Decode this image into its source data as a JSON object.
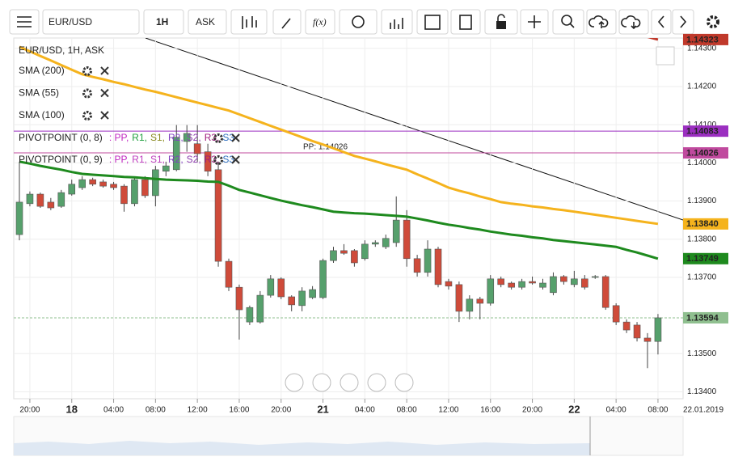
{
  "toolbar": {
    "symbol": "EUR/USD",
    "interval": "1H",
    "price_type": "ASK",
    "function_label": "f(x)"
  },
  "chart_data": {
    "type": "candlestick",
    "symbol_title": "EUR/USD, 1H, ASK",
    "categories": [
      null,
      "20:00",
      null,
      null,
      null,
      "18",
      null,
      null,
      null,
      "04:00",
      null,
      null,
      null,
      "08:00",
      null,
      null,
      null,
      "12:00",
      null,
      null,
      null,
      "16:00",
      null,
      null,
      null,
      "20:00",
      null,
      null,
      null,
      "21",
      null,
      null,
      null,
      "04:00",
      null,
      null,
      null,
      "08:00",
      null,
      null,
      null,
      "12:00",
      null,
      null,
      null,
      "16:00",
      null,
      null,
      null,
      "20:00",
      null,
      null,
      null,
      "22",
      null,
      null,
      null,
      "04:00",
      null,
      null,
      null,
      "08:00"
    ],
    "date_label": "22.01.2019",
    "open": [
      1.13812,
      1.13893,
      1.13918,
      1.13897,
      1.13886,
      1.13918,
      1.13935,
      1.13956,
      1.1395,
      1.13944,
      1.13939,
      1.13893,
      1.13956,
      1.13914,
      1.13978,
      1.13982,
      1.14056,
      1.1405,
      1.14029,
      1.13982,
      1.13742,
      1.13674,
      1.13583,
      1.13583,
      1.13653,
      1.13696,
      1.13649,
      1.13626,
      1.13647,
      1.13647,
      1.13744,
      1.1377,
      1.1377,
      1.13749,
      1.13787,
      1.1378,
      1.13791,
      1.1385,
      1.13749,
      1.13713,
      1.13774,
      1.13689,
      1.13681,
      1.13611,
      1.13643,
      1.13632,
      1.13696,
      1.13685,
      1.13674,
      1.13689,
      1.13674,
      1.1366,
      1.13702,
      1.13681,
      1.13696,
      1.137,
      1.13702,
      1.13626,
      1.13583,
      1.13575,
      1.13541,
      1.13532
    ],
    "high": [
      1.14003,
      1.13925,
      1.13922,
      1.13908,
      1.13929,
      1.13956,
      1.13965,
      1.13961,
      1.13956,
      1.1395,
      1.13944,
      1.13961,
      1.13965,
      1.13992,
      1.14003,
      1.14099,
      1.14099,
      1.14099,
      1.1405,
      1.14003,
      1.13749,
      1.13681,
      1.13626,
      1.13664,
      1.13706,
      1.137,
      1.13653,
      1.13674,
      1.13677,
      1.13749,
      1.1378,
      1.13787,
      1.13774,
      1.13797,
      1.13797,
      1.13812,
      1.13912,
      1.13876,
      1.13759,
      1.13797,
      1.1378,
      1.13696,
      1.13689,
      1.13653,
      1.13649,
      1.13706,
      1.13702,
      1.13689,
      1.13696,
      1.13702,
      1.13696,
      1.13713,
      1.13706,
      1.13717,
      1.13706,
      1.13706,
      1.13706,
      1.13632,
      1.1359,
      1.13583,
      1.13554,
      1.13604
    ],
    "low": [
      1.13797,
      1.13886,
      1.13882,
      1.13876,
      1.13882,
      1.13914,
      1.13929,
      1.13939,
      1.13935,
      1.13929,
      1.13872,
      1.13886,
      1.13908,
      1.13886,
      1.13965,
      1.13978,
      1.14029,
      1.14003,
      1.13965,
      1.13728,
      1.13664,
      1.13537,
      1.13575,
      1.13579,
      1.13647,
      1.13643,
      1.13611,
      1.13611,
      1.13643,
      1.13643,
      1.13738,
      1.13759,
      1.13728,
      1.13744,
      1.1378,
      1.13774,
      1.1378,
      1.13728,
      1.13702,
      1.13702,
      1.13674,
      1.13668,
      1.13583,
      1.1359,
      1.1359,
      1.13626,
      1.13674,
      1.13668,
      1.13668,
      1.13681,
      1.13668,
      1.13653,
      1.13681,
      1.13674,
      1.13668,
      1.13696,
      1.13615,
      1.13575,
      1.13554,
      1.13532,
      1.13462,
      1.13498
    ],
    "close": [
      1.13897,
      1.13918,
      1.13886,
      1.13882,
      1.13922,
      1.13944,
      1.13956,
      1.13944,
      1.13939,
      1.13935,
      1.13893,
      1.13956,
      1.13914,
      1.13982,
      1.13992,
      1.14067,
      1.14077,
      1.14024,
      1.13978,
      1.13742,
      1.13674,
      1.13615,
      1.13621,
      1.13653,
      1.13696,
      1.13649,
      1.13628,
      1.13664,
      1.13668,
      1.13744,
      1.1377,
      1.13763,
      1.13738,
      1.13787,
      1.13791,
      1.13802,
      1.1385,
      1.13749,
      1.13713,
      1.13774,
      1.13681,
      1.13677,
      1.13611,
      1.13643,
      1.13632,
      1.13696,
      1.13681,
      1.13674,
      1.13689,
      1.13685,
      1.13685,
      1.13702,
      1.13689,
      1.13696,
      1.13674,
      1.13702,
      1.13621,
      1.13583,
      1.13562,
      1.13541,
      1.13532,
      1.13594
    ],
    "up_color": "#56a06c",
    "down_color": "#cf4b3a",
    "series": [
      {
        "name": "SMA (200)",
        "color": "#c0392b",
        "values": [
          null,
          null,
          null,
          null,
          null,
          null,
          null,
          null,
          null,
          null,
          null,
          null,
          null,
          null,
          null,
          null,
          null,
          null,
          null,
          null,
          null,
          null,
          null,
          null,
          null,
          null,
          null,
          null,
          null,
          null,
          null,
          null,
          null,
          null,
          null,
          null,
          null,
          null,
          null,
          null,
          null,
          null,
          null,
          null,
          null,
          null,
          null,
          null,
          null,
          null,
          null,
          null,
          null,
          null,
          null,
          null,
          null,
          null,
          1.14345,
          1.14338,
          1.1433,
          1.14323
        ]
      },
      {
        "name": "SMA (55)",
        "color": "#1e8a1e",
        "values": [
          1.14003,
          1.13998,
          1.13992,
          1.13987,
          1.13982,
          1.13976,
          1.13971,
          1.13969,
          1.13967,
          1.13965,
          1.13963,
          1.13962,
          1.1396,
          1.13958,
          1.13956,
          1.13955,
          1.13954,
          1.13953,
          1.13951,
          1.1395,
          1.1394,
          1.13929,
          1.13922,
          1.13915,
          1.13908,
          1.13901,
          1.13895,
          1.13889,
          1.13884,
          1.13878,
          1.13872,
          1.1387,
          1.13868,
          1.13867,
          1.13865,
          1.13863,
          1.13861,
          1.13859,
          1.13854,
          1.13849,
          1.13843,
          1.13838,
          1.13834,
          1.13829,
          1.13825,
          1.1382,
          1.13816,
          1.13812,
          1.13809,
          1.13805,
          1.13802,
          1.13798,
          1.13795,
          1.13792,
          1.13789,
          1.13786,
          1.13783,
          1.1378,
          1.13772,
          1.13765,
          1.13757,
          1.13749
        ]
      },
      {
        "name": "SMA (100)",
        "color": "#f5b31d",
        "values": [
          1.14304,
          1.14292,
          1.1428,
          1.14268,
          1.14256,
          1.14244,
          1.14232,
          1.14225,
          1.14219,
          1.14212,
          1.14206,
          1.14199,
          1.14192,
          1.14186,
          1.14179,
          1.14172,
          1.14165,
          1.14158,
          1.14151,
          1.14144,
          1.14137,
          1.14127,
          1.14117,
          1.14107,
          1.14097,
          1.14087,
          1.14077,
          1.14067,
          1.14057,
          1.14048,
          1.14038,
          1.14028,
          1.14018,
          1.14011,
          1.14004,
          1.13996,
          1.13989,
          1.13982,
          1.1397,
          1.13959,
          1.13947,
          1.13935,
          1.13927,
          1.1392,
          1.13912,
          1.13905,
          1.13897,
          1.13893,
          1.1389,
          1.13886,
          1.13883,
          1.13879,
          1.13876,
          1.13872,
          1.13868,
          1.13864,
          1.1386,
          1.13856,
          1.13852,
          1.13848,
          1.13844,
          1.1384
        ]
      }
    ],
    "pivot_indicators": [
      {
        "name": "PIVOTPOINT (0, 8)",
        "components": [
          {
            "text": ": PP,",
            "color": "#c026c0"
          },
          {
            "text": "R1,",
            "color": "#22a040"
          },
          {
            "text": "S1,",
            "color": "#8a8a20"
          },
          {
            "text": "R2,",
            "color": "#8040c0"
          },
          {
            "text": "S2,",
            "color": "#9040b0"
          },
          {
            "text": "R3,",
            "color": "#a02080"
          },
          {
            "text": "S3",
            "color": "#3070c0"
          }
        ]
      },
      {
        "name": "PIVOTPOINT (0, 9)",
        "components": [
          {
            "text": ": PP,",
            "color": "#c026c0"
          },
          {
            "text": "R1,",
            "color": "#c040c0"
          },
          {
            "text": "S1,",
            "color": "#c040c0"
          },
          {
            "text": "R2,",
            "color": "#8040c0"
          },
          {
            "text": "S2,",
            "color": "#9040b0"
          },
          {
            "text": "R3,",
            "color": "#a02080"
          },
          {
            "text": "S3",
            "color": "#3070c0"
          }
        ]
      }
    ],
    "levels": [
      {
        "value": 1.14323,
        "label": "1.14323",
        "color": "#c0392b",
        "text_color": "#ffffff"
      },
      {
        "value": 1.14083,
        "label": "1.14083",
        "color": "#9b2fc0",
        "text_color": "#ffffff",
        "line": "solid"
      },
      {
        "value": 1.14026,
        "label": "1.14026",
        "color": "#c04a9e",
        "text_color": "#ffffff",
        "line": "solid",
        "note": "PP: 1.14026"
      },
      {
        "value": 1.1384,
        "label": "1.13840",
        "color": "#f5b31d",
        "text_color": "#000000"
      },
      {
        "value": 1.13749,
        "label": "1.13749",
        "color": "#1e8a1e",
        "text_color": "#ffffff"
      },
      {
        "value": 1.13594,
        "label": "1.13594",
        "color": "#8fbf8f",
        "text_color": "#ffffff",
        "line": "dashed"
      }
    ],
    "ylim": [
      1.13382,
      1.14327
    ],
    "yticks": [
      {
        "value": 1.143,
        "label": "1.14300"
      },
      {
        "value": 1.142,
        "label": "1.14200"
      },
      {
        "value": 1.141,
        "label": "1.14100"
      },
      {
        "value": 1.14,
        "label": "1.14000"
      },
      {
        "value": 1.139,
        "label": "1.13900"
      },
      {
        "value": 1.138,
        "label": "1.13800"
      },
      {
        "value": 1.137,
        "label": "1.13700"
      },
      {
        "value": 1.135,
        "label": "1.13500"
      },
      {
        "value": 1.134,
        "label": "1.13400"
      }
    ],
    "grid": true
  }
}
